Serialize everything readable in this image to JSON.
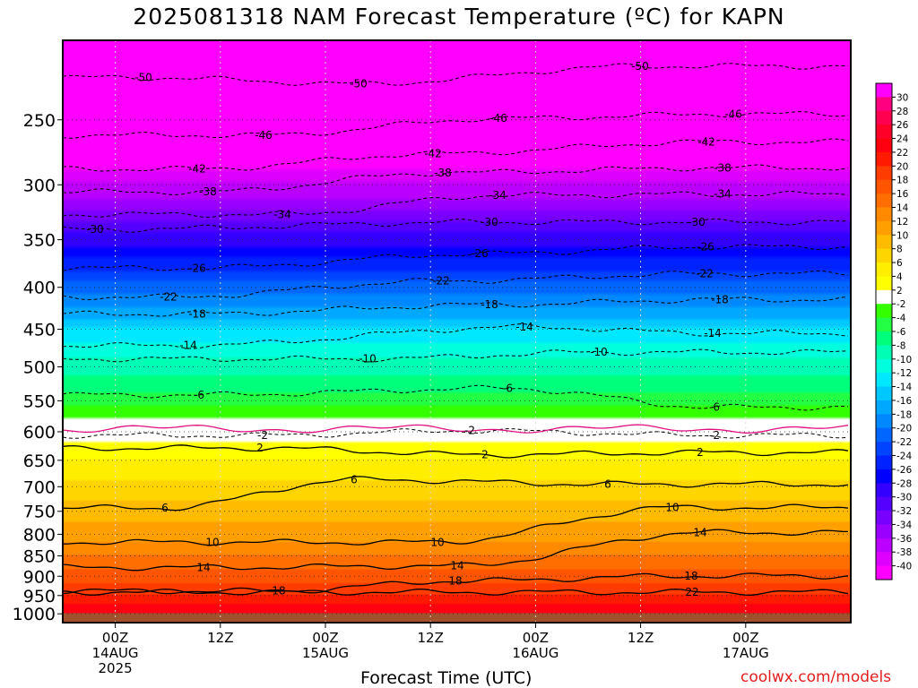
{
  "page": {
    "title": "2025081318 NAM Forecast Temperature (ºC) for KAPN",
    "credit": "coolwx.com/models"
  },
  "chart_data": {
    "type": "heatmap",
    "title": "2025081318 NAM Forecast Temperature (ºC) for KAPN",
    "xlabel": "Forecast Time (UTC)",
    "ylabel": "",
    "y_scale": "log",
    "y_reversed": true,
    "x_range_hours": [
      -6,
      84
    ],
    "y_range_hPa": [
      200,
      1025
    ],
    "y_ticks": [
      250,
      300,
      350,
      400,
      450,
      500,
      550,
      600,
      650,
      700,
      750,
      800,
      850,
      900,
      950,
      1000
    ],
    "x_ticks": [
      {
        "hour": 0,
        "line1": "00Z",
        "line2": "14AUG",
        "line3": "2025"
      },
      {
        "hour": 12,
        "line1": "12Z",
        "line2": "",
        "line3": ""
      },
      {
        "hour": 24,
        "line1": "00Z",
        "line2": "15AUG",
        "line3": ""
      },
      {
        "hour": 36,
        "line1": "12Z",
        "line2": "",
        "line3": ""
      },
      {
        "hour": 48,
        "line1": "00Z",
        "line2": "16AUG",
        "line3": ""
      },
      {
        "hour": 60,
        "line1": "12Z",
        "line2": "",
        "line3": ""
      },
      {
        "hour": 72,
        "line1": "00Z",
        "line2": "17AUG",
        "line3": ""
      }
    ],
    "grid": true,
    "ground_below_hPa": 998,
    "ground_color": "#a0522d",
    "temperature_profile": [
      {
        "p": 200,
        "t": -56
      },
      {
        "p": 220,
        "t": -52
      },
      {
        "p": 250,
        "t": -47
      },
      {
        "p": 300,
        "t": -38
      },
      {
        "p": 350,
        "t": -29
      },
      {
        "p": 400,
        "t": -21
      },
      {
        "p": 450,
        "t": -14
      },
      {
        "p": 500,
        "t": -9
      },
      {
        "p": 550,
        "t": -5
      },
      {
        "p": 590,
        "t": -1
      },
      {
        "p": 600,
        "t": 1
      },
      {
        "p": 620,
        "t": 2
      },
      {
        "p": 650,
        "t": 4
      },
      {
        "p": 700,
        "t": 6.5
      },
      {
        "p": 750,
        "t": 9
      },
      {
        "p": 800,
        "t": 11
      },
      {
        "p": 850,
        "t": 14
      },
      {
        "p": 900,
        "t": 17
      },
      {
        "p": 950,
        "t": 20
      },
      {
        "p": 1000,
        "t": 24
      }
    ],
    "contour_labels": [
      {
        "t": -50,
        "positions": [
          {
            "x": 160,
            "p": 222
          },
          {
            "x": 400,
            "p": 226
          },
          {
            "x": 714,
            "p": 215
          }
        ]
      },
      {
        "t": -46,
        "positions": [
          {
            "x": 294,
            "p": 261
          },
          {
            "x": 556,
            "p": 249
          },
          {
            "x": 818,
            "p": 246
          }
        ]
      },
      {
        "t": -42,
        "positions": [
          {
            "x": 220,
            "p": 287
          },
          {
            "x": 483,
            "p": 275
          },
          {
            "x": 788,
            "p": 266
          }
        ]
      },
      {
        "t": -38,
        "positions": [
          {
            "x": 232,
            "p": 306
          },
          {
            "x": 494,
            "p": 290
          },
          {
            "x": 806,
            "p": 286
          }
        ]
      },
      {
        "t": -34,
        "positions": [
          {
            "x": 315,
            "p": 326
          },
          {
            "x": 555,
            "p": 309
          },
          {
            "x": 806,
            "p": 308
          }
        ]
      },
      {
        "t": -30,
        "positions": [
          {
            "x": 106,
            "p": 340
          },
          {
            "x": 546,
            "p": 333
          },
          {
            "x": 777,
            "p": 333
          }
        ]
      },
      {
        "t": -26,
        "positions": [
          {
            "x": 220,
            "p": 379
          },
          {
            "x": 535,
            "p": 364
          },
          {
            "x": 787,
            "p": 357
          }
        ]
      },
      {
        "t": -22,
        "positions": [
          {
            "x": 188,
            "p": 411
          },
          {
            "x": 492,
            "p": 393
          },
          {
            "x": 786,
            "p": 385
          }
        ]
      },
      {
        "t": -18,
        "positions": [
          {
            "x": 220,
            "p": 431
          },
          {
            "x": 546,
            "p": 420
          },
          {
            "x": 803,
            "p": 414
          }
        ]
      },
      {
        "t": -14,
        "positions": [
          {
            "x": 210,
            "p": 471
          },
          {
            "x": 585,
            "p": 447
          },
          {
            "x": 795,
            "p": 455
          }
        ]
      },
      {
        "t": -10,
        "positions": [
          {
            "x": 410,
            "p": 489
          },
          {
            "x": 668,
            "p": 480
          }
        ]
      },
      {
        "t": -6,
        "positions": [
          {
            "x": 222,
            "p": 541
          },
          {
            "x": 566,
            "p": 531
          },
          {
            "x": 797,
            "p": 560
          }
        ]
      },
      {
        "t": -2,
        "positions": [
          {
            "x": 293,
            "p": 606
          },
          {
            "x": 524,
            "p": 598
          },
          {
            "x": 797,
            "p": 606
          }
        ]
      },
      {
        "t": 2,
        "positions": [
          {
            "x": 290,
            "p": 628
          },
          {
            "x": 541,
            "p": 640
          },
          {
            "x": 781,
            "p": 636
          }
        ]
      },
      {
        "t": 6,
        "positions": [
          {
            "x": 395,
            "p": 686
          },
          {
            "x": 678,
            "p": 695
          },
          {
            "x": 184,
            "p": 743
          }
        ]
      },
      {
        "t": 10,
        "positions": [
          {
            "x": 237,
            "p": 818
          },
          {
            "x": 488,
            "p": 818
          },
          {
            "x": 750,
            "p": 742
          }
        ]
      },
      {
        "t": 14,
        "positions": [
          {
            "x": 227,
            "p": 878
          },
          {
            "x": 510,
            "p": 874
          },
          {
            "x": 781,
            "p": 796
          }
        ]
      },
      {
        "t": 18,
        "positions": [
          {
            "x": 311,
            "p": 938
          },
          {
            "x": 508,
            "p": 912
          },
          {
            "x": 771,
            "p": 899
          }
        ]
      },
      {
        "t": 22,
        "positions": [
          {
            "x": 772,
            "p": 941
          }
        ]
      }
    ],
    "colorbar": {
      "labels": [
        30,
        28,
        26,
        24,
        22,
        20,
        18,
        16,
        14,
        12,
        10,
        8,
        6,
        4,
        2,
        -2,
        -4,
        -6,
        -8,
        -10,
        -12,
        -14,
        -16,
        -18,
        -20,
        -22,
        -24,
        -26,
        -28,
        -30,
        -32,
        -34,
        -36,
        -38,
        -40
      ],
      "colors": [
        "#ff00ff",
        "#ff0080",
        "#ff0050",
        "#ff0028",
        "#ff0010",
        "#ff1a00",
        "#ff3c00",
        "#ff5500",
        "#ff6e00",
        "#ff8a00",
        "#ffa000",
        "#ffbb00",
        "#ffd500",
        "#ffee00",
        "#ffff00",
        "#ffffff",
        "#33ff00",
        "#22ff44",
        "#00ff7a",
        "#00ffb4",
        "#00ffdc",
        "#00e8ff",
        "#00c8ff",
        "#00a8ff",
        "#0088ff",
        "#0066ff",
        "#0044ff",
        "#0022ff",
        "#0000ff",
        "#3300ff",
        "#5500ff",
        "#7700ff",
        "#9900ff",
        "#bb00ff",
        "#dd00ff",
        "#ff00ff"
      ]
    }
  }
}
